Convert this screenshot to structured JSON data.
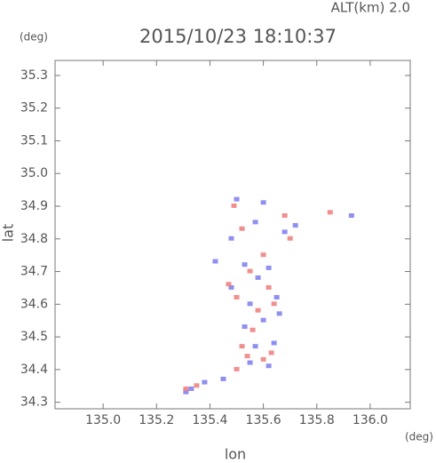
{
  "chart_data": {
    "type": "scatter",
    "annotation": "ALT(km) 2.0",
    "title": "2015/10/23 18:10:37",
    "y_unit": "(deg)",
    "x_unit": "(deg)",
    "ylabel": "lat",
    "xlabel": "lon",
    "xlim": [
      134.82,
      136.15
    ],
    "ylim": [
      34.28,
      35.346
    ],
    "xticks": [
      {
        "value": 135,
        "label": "135.0"
      },
      135.2,
      135.4,
      135.6,
      135.8,
      {
        "value": 136,
        "label": "136.0"
      }
    ],
    "yticks": [
      34.3,
      34.4,
      34.5,
      34.6,
      34.7,
      34.8,
      34.9,
      {
        "value": 35,
        "label": "35.0"
      },
      35.1,
      35.2,
      35.3
    ],
    "series": [
      {
        "color": "#7b7bef",
        "x": [
          135.31,
          135.33,
          135.38,
          135.45,
          135.55,
          135.62,
          135.57,
          135.64,
          135.53,
          135.6,
          135.55,
          135.65,
          135.48,
          135.58,
          135.53,
          135.62,
          135.48,
          135.57,
          135.68,
          135.72,
          135.93,
          135.5,
          135.6,
          135.42,
          135.66
        ],
        "values": [
          34.33,
          34.34,
          34.36,
          34.37,
          34.42,
          34.41,
          34.47,
          34.48,
          34.53,
          34.55,
          34.6,
          34.62,
          34.65,
          34.68,
          34.72,
          34.71,
          34.8,
          34.85,
          34.82,
          34.84,
          34.87,
          34.92,
          34.91,
          34.73,
          34.57
        ]
      },
      {
        "color": "#ef7b7b",
        "x": [
          135.31,
          135.35,
          135.5,
          135.6,
          135.52,
          135.63,
          135.56,
          135.58,
          135.5,
          135.62,
          135.55,
          135.47,
          135.6,
          135.7,
          135.52,
          135.49,
          135.85,
          135.68,
          135.64,
          135.54
        ],
        "values": [
          34.34,
          34.35,
          34.4,
          34.43,
          34.47,
          34.45,
          34.52,
          34.58,
          34.62,
          34.65,
          34.7,
          34.66,
          34.75,
          34.8,
          34.83,
          34.9,
          34.88,
          34.87,
          34.6,
          34.44
        ]
      }
    ]
  }
}
